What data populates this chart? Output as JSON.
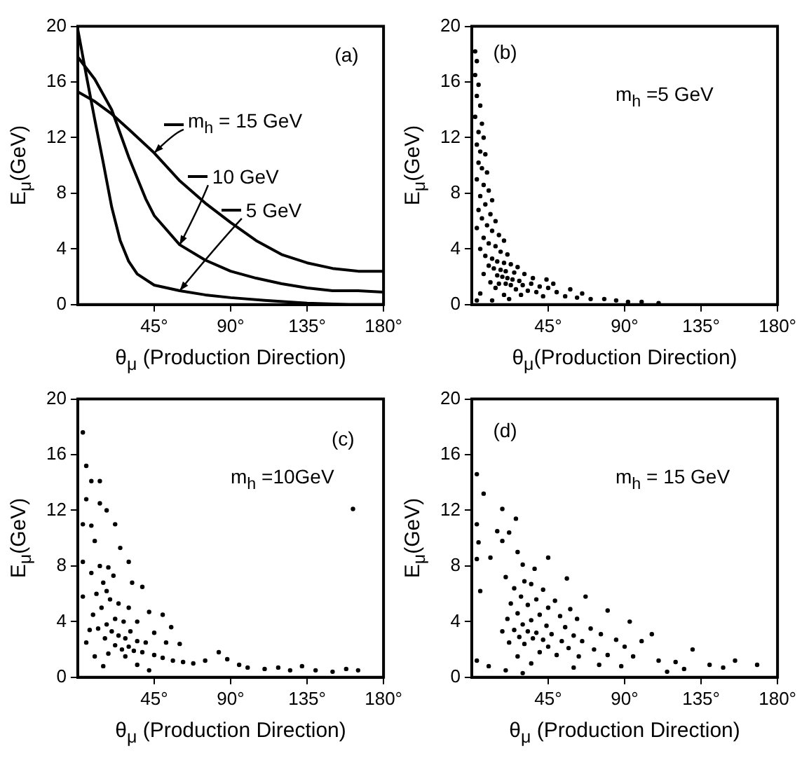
{
  "chart_data": [
    {
      "type": "line",
      "annotations": [
        "(a)"
      ],
      "xlabel": "θ$_{μ}$ (Production Direction)",
      "ylabel": "E$_{μ}$(GeV)",
      "xlim": [
        0,
        180
      ],
      "ylim": [
        0,
        20
      ],
      "xticks": [
        {
          "value": 45,
          "label": "45°"
        },
        {
          "value": 90,
          "label": "90°"
        },
        {
          "value": 135,
          "label": "135°"
        },
        {
          "value": 180,
          "label": "180°"
        }
      ],
      "yticks": [
        0,
        4,
        8,
        12,
        16,
        20
      ],
      "marker": "none",
      "line_style": "solid",
      "legend": "right",
      "series": [
        {
          "name": "m$_{h}$ = 15 GeV",
          "color": "#000000",
          "x": [
            0,
            10,
            20,
            30,
            45,
            60,
            75,
            90,
            105,
            120,
            135,
            150,
            165,
            180
          ],
          "values": [
            15.3,
            14.6,
            13.7,
            12.6,
            10.9,
            8.9,
            7.3,
            5.9,
            4.6,
            3.6,
            3.0,
            2.6,
            2.4,
            2.4
          ]
        },
        {
          "name": "10 GeV",
          "color": "#000000",
          "x": [
            0,
            10,
            20,
            30,
            40,
            45,
            60,
            75,
            90,
            105,
            120,
            135,
            150,
            165,
            180
          ],
          "values": [
            17.8,
            16.2,
            14,
            10.6,
            7.6,
            6.4,
            4.3,
            3.2,
            2.4,
            1.9,
            1.5,
            1.2,
            1.0,
            1.0,
            0.9
          ]
        },
        {
          "name": "5 GeV",
          "color": "#000000",
          "x": [
            0,
            5,
            10,
            15,
            20,
            25,
            30,
            35,
            45,
            60,
            75,
            90,
            110,
            135,
            160,
            180
          ],
          "values": [
            19.8,
            16.5,
            13.3,
            10.2,
            7,
            4.6,
            3.1,
            2.2,
            1.4,
            1.0,
            0.7,
            0.5,
            0.3,
            0.1,
            0,
            0
          ]
        }
      ]
    },
    {
      "type": "scatter",
      "annotations": [
        "(b)",
        "m$_{h}$ =5 GeV"
      ],
      "xlabel": "θ$_{μ}$(Production Direction)",
      "ylabel": "E$_{μ}$(GeV)",
      "xlim": [
        0,
        180
      ],
      "ylim": [
        0,
        20
      ],
      "xticks": [
        {
          "value": 45,
          "label": "45°"
        },
        {
          "value": 90,
          "label": "90°"
        },
        {
          "value": 135,
          "label": "135°"
        },
        {
          "value": 180,
          "label": "180°"
        }
      ],
      "yticks": [
        0,
        4,
        8,
        12,
        16,
        20
      ],
      "marker": "circle",
      "series": [
        {
          "color": "#000000",
          "x": [
            2,
            3,
            2,
            4,
            3,
            5,
            2,
            6,
            4,
            7,
            3,
            5,
            8,
            4,
            6,
            9,
            3,
            7,
            10,
            5,
            12,
            8,
            4,
            11,
            6,
            14,
            9,
            3,
            12,
            16,
            7,
            19,
            10,
            14,
            5,
            17,
            21,
            8,
            12,
            15,
            19,
            23,
            10,
            13,
            17,
            20,
            25,
            7,
            15,
            18,
            21,
            24,
            28,
            11,
            16,
            20,
            23,
            30,
            35,
            40,
            45,
            14,
            26,
            33,
            38,
            50,
            5,
            19,
            29,
            42,
            55,
            62,
            70,
            78,
            85,
            92,
            100,
            110,
            3,
            12,
            22,
            36,
            31,
            27,
            44,
            48,
            58,
            65
          ],
          "values": [
            18.2,
            17.5,
            16.5,
            15.8,
            15,
            14.3,
            13.5,
            13,
            12.4,
            12,
            11.5,
            11,
            10.8,
            10.2,
            9.8,
            9.5,
            9,
            8.6,
            8.2,
            7.8,
            7.5,
            7.2,
            6.8,
            6.5,
            6.2,
            6,
            5.7,
            5.5,
            5.3,
            5,
            4.8,
            4.6,
            4.4,
            4.2,
            4,
            3.8,
            3.6,
            3.5,
            3.3,
            3.1,
            3,
            2.9,
            2.8,
            2.6,
            2.5,
            2.4,
            2.3,
            2.2,
            2.1,
            2,
            1.9,
            1.8,
            1.7,
            1.6,
            1.5,
            1.5,
            1.4,
            1.4,
            1.5,
            1.3,
            1.2,
            1.2,
            1.1,
            1.0,
            0.9,
            0.9,
            0.8,
            0.7,
            0.7,
            0.6,
            0.6,
            0.5,
            0.4,
            0.4,
            0.3,
            0.2,
            0.2,
            0.1,
            0.3,
            0.3,
            0.4,
            1.9,
            2.2,
            2.7,
            1.8,
            1.5,
            1.1,
            0.8
          ]
        }
      ]
    },
    {
      "type": "scatter",
      "annotations": [
        "(c)",
        "m$_{h}$ =10GeV"
      ],
      "xlabel": "θ$_{μ}$ (Production Direction)",
      "ylabel": "E$_{μ}$(GeV)",
      "xlim": [
        0,
        180
      ],
      "ylim": [
        0,
        20
      ],
      "xticks": [
        {
          "value": 45,
          "label": "45°"
        },
        {
          "value": 90,
          "label": "90°"
        },
        {
          "value": 135,
          "label": "135°"
        },
        {
          "value": 180,
          "label": "180°"
        }
      ],
      "yticks": [
        0,
        4,
        8,
        12,
        16,
        20
      ],
      "marker": "circle",
      "series": [
        {
          "color": "#000000",
          "x": [
            3,
            5,
            8,
            13,
            5,
            13,
            17,
            3,
            8,
            22,
            10,
            25,
            3,
            30,
            13,
            18,
            8,
            21,
            15,
            32,
            17,
            11,
            38,
            19,
            24,
            14,
            30,
            42,
            50,
            9,
            22,
            27,
            35,
            17,
            55,
            12,
            20,
            31,
            45,
            24,
            28,
            16,
            35,
            40,
            52,
            60,
            22,
            30,
            26,
            33,
            38,
            45,
            18,
            50,
            28,
            56,
            62,
            68,
            75,
            83,
            88,
            95,
            100,
            110,
            118,
            125,
            132,
            140,
            150,
            158,
            165,
            5,
            10,
            15,
            35,
            42,
            3,
            7,
            162
          ],
          "values": [
            17.6,
            15.2,
            14.1,
            14.1,
            12.8,
            12.5,
            12,
            11,
            10.9,
            11,
            9.8,
            9.3,
            8.3,
            8.3,
            8,
            7.9,
            7.5,
            7.3,
            6.8,
            6.8,
            6.2,
            6,
            6.5,
            5.6,
            5.3,
            5,
            5,
            4.7,
            4.5,
            4.5,
            4.2,
            4,
            4,
            3.8,
            3.6,
            3.5,
            3.3,
            3.3,
            3.2,
            3,
            2.8,
            2.8,
            2.6,
            2.5,
            2.5,
            2.4,
            2.3,
            2.2,
            2,
            1.9,
            1.8,
            1.6,
            1.7,
            1.4,
            1.5,
            1.2,
            1.1,
            1.0,
            1.2,
            1.8,
            1.3,
            0.9,
            0.7,
            0.6,
            0.7,
            0.5,
            0.8,
            0.5,
            0.4,
            0.6,
            0.5,
            2.5,
            1.5,
            0.8,
            0.9,
            0.5,
            5.8,
            3.4,
            12.1
          ]
        }
      ]
    },
    {
      "type": "scatter",
      "annotations": [
        "(d)",
        "m$_{h}$ = 15 GeV"
      ],
      "xlabel": "θ$_{μ}$ (Production Direction)",
      "ylabel": "E$_{μ}$(GeV)",
      "xlim": [
        0,
        180
      ],
      "ylim": [
        0,
        20
      ],
      "xticks": [
        {
          "value": 45,
          "label": "45°"
        },
        {
          "value": 90,
          "label": "90°"
        },
        {
          "value": 135,
          "label": "135°"
        },
        {
          "value": 180,
          "label": "180°"
        }
      ],
      "yticks": [
        0,
        4,
        8,
        12,
        16,
        20
      ],
      "marker": "circle",
      "series": [
        {
          "color": "#000000",
          "x": [
            3,
            7,
            3,
            18,
            26,
            15,
            4,
            18,
            22,
            27,
            11,
            45,
            3,
            30,
            37,
            20,
            31,
            35,
            56,
            25,
            42,
            5,
            29,
            38,
            49,
            67,
            23,
            33,
            45,
            58,
            80,
            27,
            40,
            52,
            21,
            35,
            62,
            93,
            30,
            44,
            55,
            70,
            25,
            33,
            38,
            18,
            47,
            60,
            76,
            106,
            28,
            36,
            42,
            53,
            65,
            85,
            100,
            22,
            31,
            45,
            57,
            72,
            90,
            130,
            40,
            50,
            63,
            80,
            95,
            27,
            110,
            120,
            140,
            155,
            168,
            35,
            60,
            75,
            3,
            10,
            20,
            30,
            125,
            148,
            115,
            88
          ],
          "values": [
            14.6,
            13.2,
            11,
            12.1,
            11.4,
            10.5,
            9.7,
            9.8,
            10.4,
            9,
            8.6,
            8.6,
            8.5,
            8.1,
            7.8,
            7.2,
            6.9,
            6.7,
            7.1,
            6.4,
            6.3,
            6.2,
            5.8,
            5.6,
            5.5,
            5.8,
            5.3,
            5.2,
            5,
            4.9,
            4.8,
            4.6,
            4.5,
            4.4,
            4.2,
            4.1,
            4.2,
            4,
            3.8,
            3.7,
            3.6,
            3.5,
            3.4,
            3.3,
            3.2,
            3.3,
            3.1,
            3,
            3.1,
            3.1,
            2.9,
            2.8,
            2.7,
            2.6,
            2.6,
            2.7,
            2.6,
            2.5,
            2.4,
            2.2,
            2.1,
            2,
            2.2,
            2.0,
            1.8,
            1.6,
            1.5,
            1.6,
            1.5,
            1.5,
            1.2,
            1.1,
            0.9,
            1.2,
            0.9,
            1.0,
            0.7,
            0.9,
            1.2,
            0.8,
            0.5,
            0.3,
            0.6,
            0.7,
            0.4,
            0.8
          ]
        }
      ]
    }
  ]
}
